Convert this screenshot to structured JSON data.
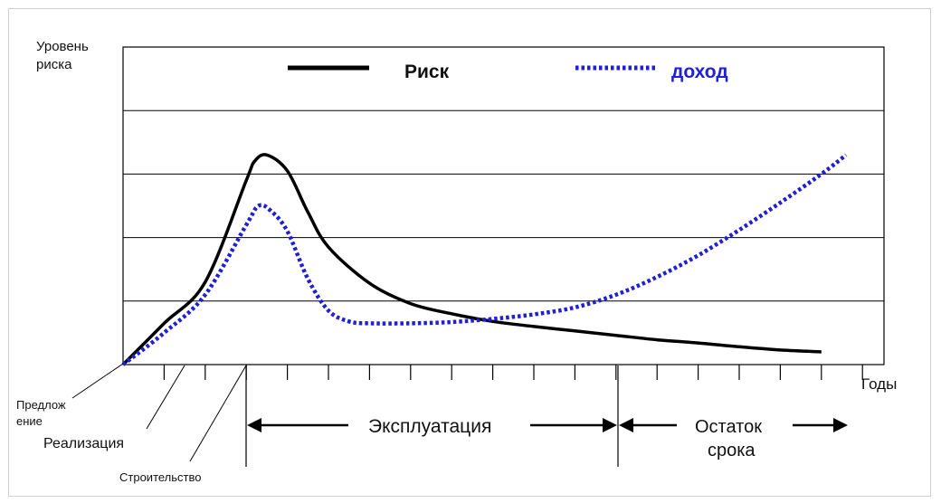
{
  "chart_data": {
    "type": "line",
    "ylabel": [
      "Уровень",
      "риска"
    ],
    "xlabel": "Годы",
    "x_ticks": 18,
    "ylim": [
      0,
      5
    ],
    "gridlines": [
      1,
      2,
      3,
      4
    ],
    "legend": {
      "position": "top",
      "items": [
        "Риск",
        "доход"
      ]
    },
    "series": [
      {
        "name": "Риск",
        "color": "#000000",
        "style": "solid",
        "x": [
          0,
          1,
          2,
          3,
          3.2,
          3.5,
          4,
          4.5,
          5,
          6,
          7,
          8,
          9,
          10,
          11,
          12,
          13,
          14,
          15,
          16,
          17
        ],
        "y": [
          0,
          0.65,
          1.3,
          2.9,
          3.2,
          3.3,
          3.05,
          2.4,
          1.85,
          1.28,
          0.96,
          0.8,
          0.68,
          0.6,
          0.53,
          0.46,
          0.39,
          0.34,
          0.28,
          0.23,
          0.2
        ]
      },
      {
        "name": "доход",
        "color": "#1f1fd6",
        "style": "dotted",
        "x": [
          0,
          1,
          2,
          3,
          3.3,
          3.6,
          4,
          4.5,
          5,
          5.5,
          6,
          7,
          8,
          9,
          10,
          11,
          12,
          13,
          14,
          15,
          16,
          17,
          17.6
        ],
        "y": [
          0,
          0.5,
          1.1,
          2.2,
          2.5,
          2.42,
          2.1,
          1.35,
          0.85,
          0.68,
          0.65,
          0.65,
          0.67,
          0.72,
          0.79,
          0.9,
          1.1,
          1.38,
          1.72,
          2.12,
          2.55,
          3.0,
          3.3
        ]
      }
    ],
    "annotations": {
      "phases": [
        {
          "label": "Предлож ение",
          "lines": [
            "Предлож",
            "ение"
          ]
        },
        {
          "label": "Реализация"
        },
        {
          "label": "Строительство"
        }
      ],
      "spans": [
        {
          "label": "Эксплуатация",
          "from": 3,
          "to": 12
        },
        {
          "label": "Остаток срока",
          "lines": [
            "Остаток",
            "срока"
          ],
          "from": 12,
          "to": 17.6
        }
      ]
    }
  }
}
